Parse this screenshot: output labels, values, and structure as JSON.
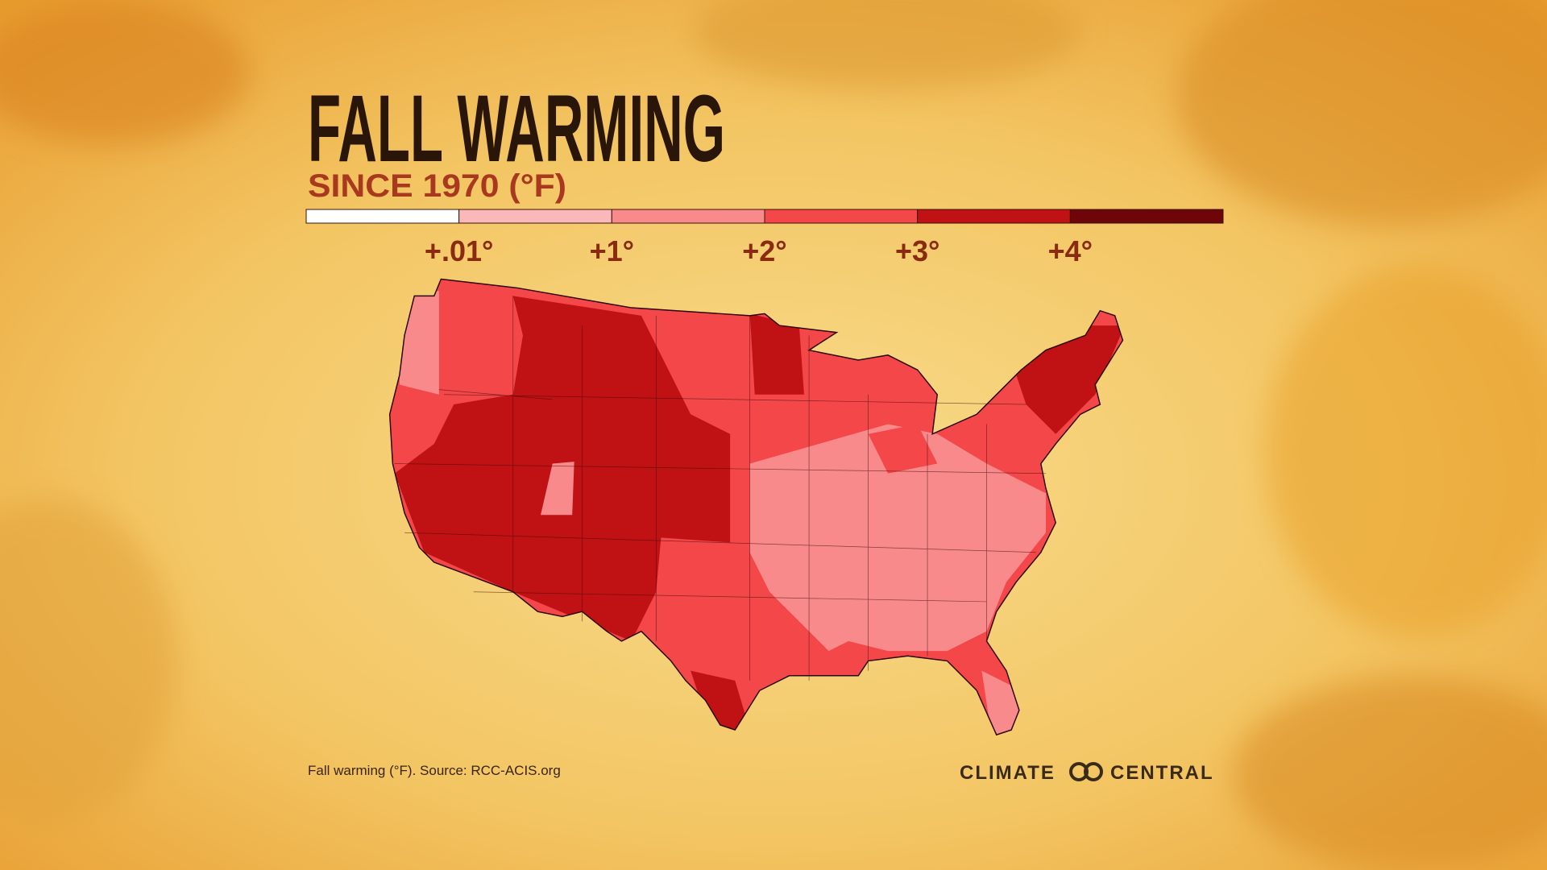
{
  "header": {
    "title": "FALL WARMING",
    "subtitle": "SINCE 1970 (°F)"
  },
  "legend": {
    "colors": [
      "#ffffff",
      "#fbb8ba",
      "#f88a8c",
      "#f4474a",
      "#c01214",
      "#6e0508"
    ],
    "ticks": [
      "+.01°",
      "+1°",
      "+2°",
      "+3°",
      "+4°"
    ]
  },
  "footer": {
    "source": "Fall warming (°F). Source: RCC-ACIS.org",
    "logo_left": "CLIMATE",
    "logo_right": "CENTRAL"
  }
}
